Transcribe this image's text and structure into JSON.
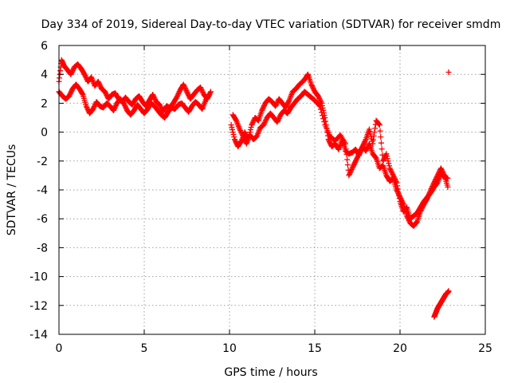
{
  "chart_data": {
    "type": "scatter",
    "title": "Day 334 of 2019, Sidereal Day-to-day VTEC variation (SDTVAR) for receiver smdm",
    "xlabel": "GPS time / hours",
    "ylabel": "SDTVAR / TECUs",
    "xlim": [
      0,
      25
    ],
    "ylim": [
      -14,
      6
    ],
    "xticks": [
      0,
      5,
      10,
      15,
      20,
      25
    ],
    "yticks": [
      -14,
      -12,
      -10,
      -8,
      -6,
      -4,
      -2,
      0,
      2,
      4,
      6
    ],
    "xtick_labels": [
      "0",
      "5",
      "10",
      "15",
      "20",
      "25"
    ],
    "ytick_labels": [
      "-14",
      "-12",
      "-10",
      "-8",
      "-6",
      "-4",
      "-2",
      "0",
      "2",
      "4",
      "6"
    ],
    "grid": true,
    "legend": "none",
    "marker": "+",
    "color": "#ff0000",
    "series": [
      {
        "name": "SDTVAR segment 1 (upper)",
        "x": [
          0.0,
          0.15,
          0.3,
          0.5,
          0.7,
          0.9,
          1.1,
          1.3,
          1.5,
          1.7,
          1.9,
          2.1,
          2.3,
          2.5,
          2.7,
          2.9,
          3.1,
          3.3,
          3.5,
          3.7,
          3.9,
          4.1,
          4.3,
          4.5,
          4.7,
          4.9,
          5.1,
          5.3,
          5.5,
          5.7,
          5.9,
          6.1,
          6.3,
          6.5,
          6.7,
          6.9,
          7.1,
          7.3,
          7.5,
          7.7,
          7.9,
          8.1,
          8.3,
          8.5,
          8.7,
          8.9
        ],
        "y": [
          3.5,
          5.0,
          4.6,
          4.3,
          4.0,
          4.5,
          4.7,
          4.4,
          4.0,
          3.5,
          3.8,
          3.2,
          3.5,
          3.0,
          2.8,
          2.3,
          2.6,
          2.7,
          2.3,
          2.1,
          2.4,
          2.1,
          1.9,
          2.3,
          2.5,
          2.1,
          1.8,
          2.2,
          2.6,
          2.1,
          1.9,
          1.4,
          1.8,
          1.7,
          2.0,
          2.4,
          2.9,
          3.3,
          2.8,
          2.3,
          2.6,
          2.9,
          3.1,
          2.6,
          2.3,
          2.8
        ]
      },
      {
        "name": "SDTVAR segment 1 (lower)",
        "x": [
          0.0,
          0.2,
          0.4,
          0.6,
          0.8,
          1.0,
          1.2,
          1.4,
          1.6,
          1.8,
          2.0,
          2.2,
          2.4,
          2.6,
          2.8,
          3.0,
          3.2,
          3.4,
          3.6,
          3.8,
          4.0,
          4.2,
          4.4,
          4.6,
          4.8,
          5.0,
          5.2,
          5.4,
          5.6,
          5.8,
          6.0,
          6.2,
          6.4,
          6.6,
          6.8,
          7.0,
          7.2,
          7.4,
          7.6,
          7.8,
          8.0,
          8.2,
          8.4,
          8.6,
          8.8
        ],
        "y": [
          2.8,
          2.5,
          2.3,
          2.5,
          3.0,
          3.3,
          3.0,
          2.6,
          1.8,
          1.3,
          1.6,
          2.1,
          1.8,
          1.7,
          2.0,
          1.8,
          1.5,
          2.0,
          2.3,
          2.0,
          1.5,
          1.2,
          1.5,
          1.9,
          1.6,
          1.3,
          1.6,
          2.0,
          1.8,
          1.5,
          1.2,
          1.0,
          1.4,
          1.7,
          1.6,
          1.9,
          2.0,
          1.7,
          1.4,
          1.8,
          2.1,
          1.9,
          1.6,
          2.2,
          2.6
        ]
      },
      {
        "name": "SDTVAR segment 2 (main)",
        "x": [
          10.1,
          10.3,
          10.5,
          10.7,
          10.9,
          11.1,
          11.3,
          11.5,
          11.7,
          11.9,
          12.1,
          12.3,
          12.5,
          12.7,
          12.9,
          13.1,
          13.3,
          13.5,
          13.7,
          13.9,
          14.1,
          14.3,
          14.5,
          14.6,
          14.8,
          15.0,
          15.2,
          15.4,
          15.6,
          15.8,
          16.0,
          16.2,
          16.4,
          16.6,
          16.8,
          17.0,
          17.2,
          17.4,
          17.6,
          17.8,
          18.0,
          18.2,
          18.4,
          18.6,
          18.8,
          19.0,
          19.2,
          19.4,
          19.6,
          19.8,
          20.0,
          20.2,
          20.4,
          20.6,
          20.8,
          21.0,
          21.2,
          21.4,
          21.6,
          21.8,
          22.0,
          22.2,
          22.4,
          22.6,
          22.8
        ],
        "y": [
          0.5,
          -0.5,
          -1.0,
          -0.6,
          0.0,
          -0.5,
          0.5,
          1.0,
          0.8,
          1.5,
          2.0,
          2.3,
          2.1,
          1.8,
          2.3,
          2.0,
          1.7,
          2.2,
          2.8,
          3.0,
          3.3,
          3.5,
          3.8,
          4.0,
          3.3,
          2.8,
          2.5,
          2.0,
          1.0,
          -0.5,
          -1.0,
          -0.8,
          -1.2,
          -0.5,
          -1.3,
          -1.5,
          -1.4,
          -1.2,
          -1.6,
          -1.0,
          -1.3,
          -0.8,
          -1.5,
          -1.8,
          -2.5,
          -2.3,
          -3.0,
          -3.4,
          -3.2,
          -4.0,
          -4.5,
          -5.0,
          -5.8,
          -6.3,
          -6.5,
          -6.2,
          -5.5,
          -5.0,
          -4.6,
          -4.0,
          -3.5,
          -3.0,
          -2.5,
          -3.0,
          -3.8
        ]
      },
      {
        "name": "SDTVAR segment 2 (secondary)",
        "x": [
          10.2,
          10.4,
          10.6,
          10.8,
          11.0,
          11.2,
          11.4,
          11.6,
          11.8,
          12.0,
          12.2,
          12.4,
          12.6,
          12.8,
          13.0,
          13.2,
          13.4,
          13.6,
          13.8,
          14.0,
          14.2,
          14.4,
          14.6,
          14.8,
          15.0,
          15.3,
          15.6,
          15.9,
          16.2,
          16.5,
          16.8,
          17.0,
          17.2,
          17.4,
          17.6,
          17.8,
          18.0,
          18.2,
          18.4,
          18.6,
          18.8,
          19.0,
          19.2,
          19.4,
          19.6,
          19.8,
          20.0,
          20.2,
          20.4,
          20.6,
          20.8,
          21.0,
          21.2,
          21.4,
          21.6,
          21.8,
          22.0,
          22.2,
          22.4,
          22.6,
          22.8
        ],
        "y": [
          1.2,
          0.8,
          0.2,
          -0.3,
          -0.8,
          -0.2,
          -0.5,
          -0.3,
          0.3,
          0.5,
          1.0,
          1.3,
          1.0,
          0.7,
          1.2,
          1.5,
          1.3,
          1.7,
          2.0,
          2.3,
          2.5,
          2.8,
          2.6,
          2.4,
          2.2,
          1.8,
          0.5,
          -0.3,
          -0.6,
          -0.2,
          -0.8,
          -3.0,
          -2.5,
          -2.0,
          -1.5,
          -1.0,
          -0.5,
          0.2,
          -0.8,
          0.8,
          0.5,
          -2.0,
          -1.5,
          -2.5,
          -3.0,
          -3.5,
          -4.8,
          -5.5,
          -5.2,
          -6.0,
          -5.8,
          -5.6,
          -5.2,
          -4.8,
          -4.5,
          -4.2,
          -3.8,
          -3.5,
          -2.9,
          -3.1,
          -3.2
        ]
      },
      {
        "name": "SDTVAR segment 3",
        "x": [
          22.0,
          22.1,
          22.2,
          22.3,
          22.4,
          22.5,
          22.6,
          22.7,
          22.8,
          22.85
        ],
        "y": [
          -12.8,
          -12.5,
          -12.2,
          -12.0,
          -11.8,
          -11.6,
          -11.4,
          -11.2,
          -11.1,
          -11.0
        ]
      },
      {
        "name": "SDTVAR isolated point",
        "x": [
          22.85
        ],
        "y": [
          4.15
        ]
      }
    ]
  }
}
